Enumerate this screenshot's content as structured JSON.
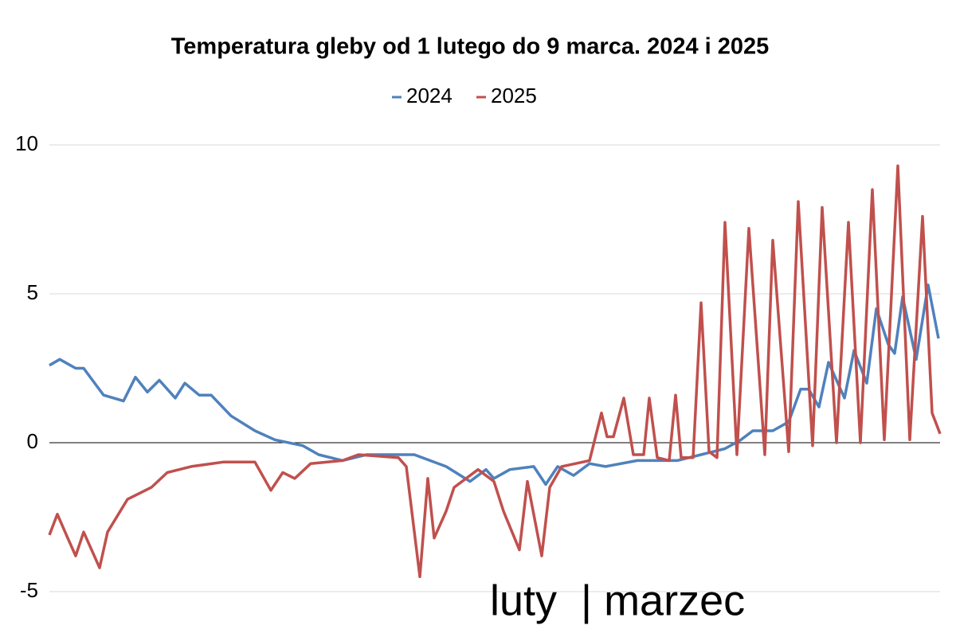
{
  "chart_data": {
    "type": "line",
    "title": "Temperatura gleby od 1 lutego do 9 marca. 2024 i 2025",
    "annotation": "luty  | marzec",
    "xlim": [
      0,
      1118
    ],
    "ylim": [
      -5,
      10
    ],
    "yticks": [
      10,
      5,
      0,
      -5
    ],
    "grid": true,
    "legend": "top",
    "series": [
      {
        "name": "2024",
        "color": "#4f81bd",
        "x": [
          0,
          13,
          33,
          43,
          68,
          93,
          108,
          123,
          138,
          158,
          170,
          188,
          203,
          228,
          258,
          283,
          318,
          338,
          368,
          398,
          458,
          498,
          528,
          548,
          558,
          578,
          608,
          623,
          638,
          658,
          678,
          698,
          738,
          788,
          818,
          848,
          868,
          883,
          908,
          928,
          943,
          953,
          966,
          978,
          998,
          1010,
          1026,
          1038,
          1053,
          1061,
          1071,
          1088,
          1103,
          1116
        ],
        "values": [
          2.6,
          2.8,
          2.5,
          2.5,
          1.6,
          1.4,
          2.2,
          1.7,
          2.1,
          1.5,
          2.0,
          1.6,
          1.6,
          0.9,
          0.4,
          0.1,
          -0.1,
          -0.4,
          -0.6,
          -0.4,
          -0.4,
          -0.8,
          -1.3,
          -0.9,
          -1.2,
          -0.9,
          -0.8,
          -1.4,
          -0.8,
          -1.1,
          -0.7,
          -0.8,
          -0.6,
          -0.6,
          -0.4,
          -0.2,
          0.1,
          0.4,
          0.4,
          0.7,
          1.8,
          1.8,
          1.2,
          2.7,
          1.5,
          3.1,
          2.0,
          4.5,
          3.3,
          3.0,
          4.9,
          2.8,
          5.3,
          3.5
        ]
      },
      {
        "name": "2025",
        "color": "#c0504d",
        "x": [
          0,
          10,
          23,
          33,
          43,
          63,
          73,
          98,
          128,
          148,
          178,
          218,
          258,
          278,
          293,
          308,
          328,
          368,
          388,
          438,
          448,
          465,
          475,
          483,
          498,
          508,
          538,
          558,
          570,
          590,
          600,
          618,
          628,
          643,
          678,
          693,
          700,
          708,
          721,
          733,
          746,
          753,
          763,
          778,
          786,
          793,
          808,
          818,
          828,
          838,
          848,
          863,
          878,
          898,
          908,
          928,
          940,
          958,
          970,
          988,
          1003,
          1018,
          1033,
          1048,
          1065,
          1080,
          1096,
          1108,
          1118
        ],
        "values": [
          -3.1,
          -2.4,
          -3.2,
          -3.8,
          -3.0,
          -4.2,
          -3.0,
          -1.9,
          -1.5,
          -1.0,
          -0.8,
          -0.65,
          -0.65,
          -1.6,
          -1.0,
          -1.2,
          -0.7,
          -0.6,
          -0.4,
          -0.5,
          -0.8,
          -4.5,
          -1.2,
          -3.2,
          -2.3,
          -1.5,
          -0.9,
          -1.3,
          -2.3,
          -3.6,
          -1.3,
          -3.8,
          -1.5,
          -0.8,
          -0.6,
          1.0,
          0.2,
          0.2,
          1.5,
          -0.4,
          -0.4,
          1.5,
          -0.5,
          -0.6,
          1.6,
          -0.5,
          -0.5,
          4.7,
          -0.3,
          -0.5,
          7.4,
          -0.4,
          7.2,
          -0.4,
          6.8,
          -0.3,
          8.1,
          -0.1,
          7.9,
          0.0,
          7.4,
          0.0,
          8.5,
          0.1,
          9.3,
          0.1,
          7.6,
          1.0,
          0.3
        ]
      }
    ]
  }
}
